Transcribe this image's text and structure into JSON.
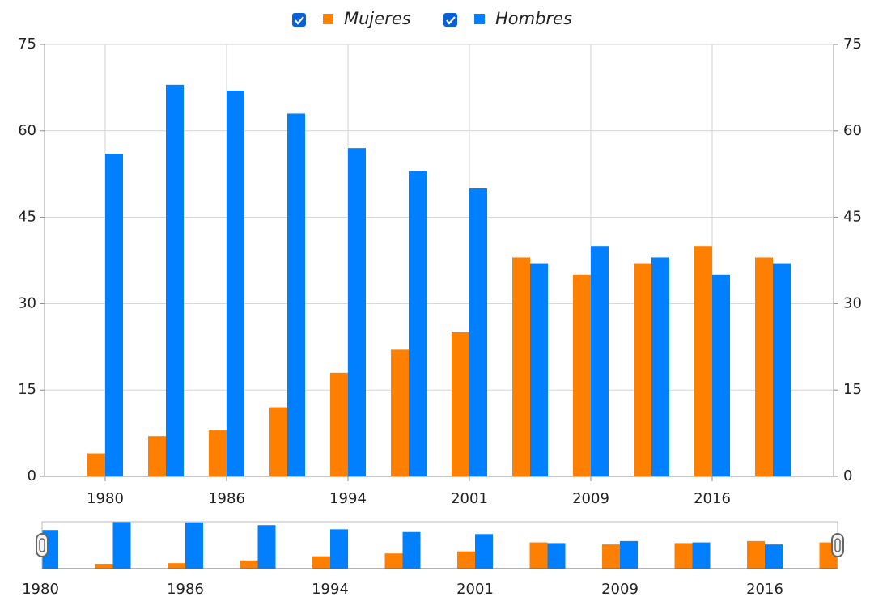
{
  "chart_data": {
    "type": "bar",
    "categories": [
      "1980",
      null,
      "1986",
      null,
      "1994",
      null,
      "2001",
      null,
      "2009",
      null,
      "2016",
      null
    ],
    "series": [
      {
        "name": "Mujeres",
        "color": "#ff8000",
        "values": [
          4,
          7,
          8,
          12,
          18,
          22,
          25,
          38,
          35,
          37,
          40,
          38
        ]
      },
      {
        "name": "Hombres",
        "color": "#0080ff",
        "values": [
          56,
          68,
          67,
          63,
          57,
          53,
          50,
          37,
          40,
          38,
          35,
          37
        ]
      }
    ],
    "ylim": [
      0,
      75
    ],
    "yticks": [
      0,
      15,
      30,
      45,
      60,
      75
    ],
    "y2lim": [
      0,
      75
    ],
    "y2ticks": [
      0,
      15,
      30,
      45,
      60,
      75
    ],
    "grid": true,
    "legend": "top"
  }
}
